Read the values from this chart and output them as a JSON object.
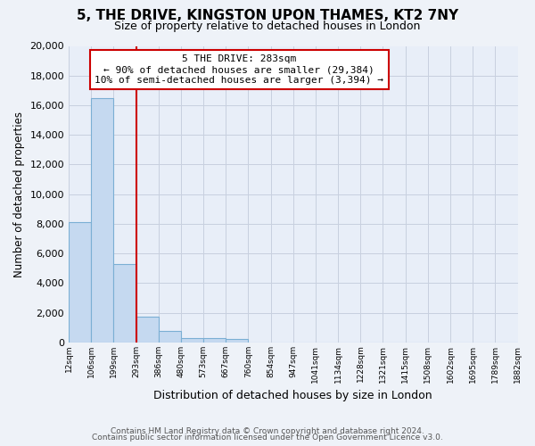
{
  "title": "5, THE DRIVE, KINGSTON UPON THAMES, KT2 7NY",
  "subtitle": "Size of property relative to detached houses in London",
  "xlabel": "Distribution of detached houses by size in London",
  "ylabel": "Number of detached properties",
  "bar_values": [
    8100,
    16500,
    5300,
    1750,
    750,
    280,
    260,
    200,
    0,
    0,
    0,
    0,
    0,
    0,
    0,
    0,
    0,
    0,
    0,
    0
  ],
  "bar_labels": [
    "12sqm",
    "106sqm",
    "199sqm",
    "293sqm",
    "386sqm",
    "480sqm",
    "573sqm",
    "667sqm",
    "760sqm",
    "854sqm",
    "947sqm",
    "1041sqm",
    "1134sqm",
    "1228sqm",
    "1321sqm",
    "1415sqm",
    "1508sqm",
    "1602sqm",
    "1695sqm",
    "1789sqm",
    "1882sqm"
  ],
  "bar_color": "#c5d9f0",
  "bar_edge_color": "#7bafd4",
  "vline_color": "#cc0000",
  "annotation_title": "5 THE DRIVE: 283sqm",
  "annotation_line1": "← 90% of detached houses are smaller (29,384)",
  "annotation_line2": "10% of semi-detached houses are larger (3,394) →",
  "annotation_box_color": "#ffffff",
  "annotation_box_edge": "#cc0000",
  "ylim": [
    0,
    20000
  ],
  "yticks": [
    0,
    2000,
    4000,
    6000,
    8000,
    10000,
    12000,
    14000,
    16000,
    18000,
    20000
  ],
  "footer1": "Contains HM Land Registry data © Crown copyright and database right 2024.",
  "footer2": "Contains public sector information licensed under the Open Government Licence v3.0.",
  "background_color": "#eef2f8",
  "grid_color": "#c8d0df",
  "plot_bg_color": "#e8eef8"
}
